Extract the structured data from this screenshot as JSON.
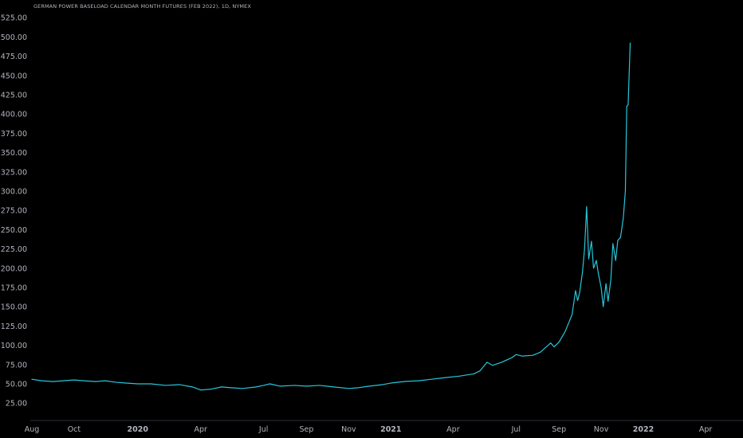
{
  "chart_data": {
    "type": "line",
    "title": "GERMAN POWER BASELOAD CALENDAR MONTH FUTURES (FEB 2022), 1D, NYMEX",
    "xlabel": "",
    "ylabel": "",
    "ylim": [
      0,
      530
    ],
    "y_ticks": [
      25,
      50,
      75,
      100,
      125,
      150,
      175,
      200,
      225,
      250,
      275,
      300,
      325,
      350,
      375,
      400,
      425,
      450,
      475,
      500,
      525
    ],
    "y_tick_labels": [
      "25.00",
      "50.00",
      "75.00",
      "100.00",
      "125.00",
      "150.00",
      "175.00",
      "200.00",
      "225.00",
      "250.00",
      "275.00",
      "300.00",
      "325.00",
      "350.00",
      "375.00",
      "400.00",
      "425.00",
      "450.00",
      "475.00",
      "500.00",
      "525.00"
    ],
    "x_range": [
      "2019-08-01",
      "2022-05-10"
    ],
    "x_ticks": [
      {
        "date": "2019-08-01",
        "label": "Aug",
        "bold": false
      },
      {
        "date": "2019-10-01",
        "label": "Oct",
        "bold": false
      },
      {
        "date": "2020-01-01",
        "label": "2020",
        "bold": true
      },
      {
        "date": "2020-04-01",
        "label": "Apr",
        "bold": false
      },
      {
        "date": "2020-07-01",
        "label": "Jul",
        "bold": false
      },
      {
        "date": "2020-09-01",
        "label": "Sep",
        "bold": false
      },
      {
        "date": "2020-11-01",
        "label": "Nov",
        "bold": false
      },
      {
        "date": "2021-01-01",
        "label": "2021",
        "bold": true
      },
      {
        "date": "2021-04-01",
        "label": "Apr",
        "bold": false
      },
      {
        "date": "2021-07-01",
        "label": "Jul",
        "bold": false
      },
      {
        "date": "2021-09-01",
        "label": "Sep",
        "bold": false
      },
      {
        "date": "2021-11-01",
        "label": "Nov",
        "bold": false
      },
      {
        "date": "2022-01-01",
        "label": "2022",
        "bold": true
      },
      {
        "date": "2022-04-01",
        "label": "Apr",
        "bold": false
      }
    ],
    "grid": false,
    "series": [
      {
        "color": "#26c6da",
        "points": [
          [
            "2019-08-01",
            56
          ],
          [
            "2019-08-15",
            54
          ],
          [
            "2019-09-01",
            53
          ],
          [
            "2019-09-15",
            54
          ],
          [
            "2019-10-01",
            55
          ],
          [
            "2019-10-15",
            54
          ],
          [
            "2019-11-01",
            53
          ],
          [
            "2019-11-15",
            54
          ],
          [
            "2019-12-01",
            52
          ],
          [
            "2019-12-15",
            51
          ],
          [
            "2020-01-01",
            50
          ],
          [
            "2020-01-20",
            50
          ],
          [
            "2020-02-10",
            48
          ],
          [
            "2020-03-01",
            49
          ],
          [
            "2020-03-20",
            46
          ],
          [
            "2020-04-01",
            42
          ],
          [
            "2020-04-15",
            43
          ],
          [
            "2020-05-01",
            46
          ],
          [
            "2020-05-15",
            45
          ],
          [
            "2020-06-01",
            44
          ],
          [
            "2020-06-20",
            46
          ],
          [
            "2020-07-01",
            48
          ],
          [
            "2020-07-10",
            50
          ],
          [
            "2020-07-25",
            47
          ],
          [
            "2020-08-15",
            48
          ],
          [
            "2020-09-01",
            47
          ],
          [
            "2020-09-20",
            48
          ],
          [
            "2020-10-10",
            46
          ],
          [
            "2020-11-01",
            44
          ],
          [
            "2020-11-15",
            45
          ],
          [
            "2020-12-01",
            47
          ],
          [
            "2020-12-20",
            49
          ],
          [
            "2021-01-01",
            51
          ],
          [
            "2021-01-20",
            53
          ],
          [
            "2021-02-10",
            54
          ],
          [
            "2021-03-01",
            56
          ],
          [
            "2021-03-20",
            58
          ],
          [
            "2021-04-10",
            60
          ],
          [
            "2021-05-01",
            63
          ],
          [
            "2021-05-10",
            67
          ],
          [
            "2021-05-20",
            78
          ],
          [
            "2021-05-28",
            74
          ],
          [
            "2021-06-10",
            78
          ],
          [
            "2021-06-25",
            84
          ],
          [
            "2021-07-01",
            88
          ],
          [
            "2021-07-10",
            86
          ],
          [
            "2021-07-25",
            87
          ],
          [
            "2021-08-05",
            91
          ],
          [
            "2021-08-20",
            103
          ],
          [
            "2021-08-25",
            98
          ],
          [
            "2021-09-01",
            104
          ],
          [
            "2021-09-10",
            118
          ],
          [
            "2021-09-20",
            140
          ],
          [
            "2021-09-25",
            171
          ],
          [
            "2021-09-28",
            158
          ],
          [
            "2021-10-01",
            169
          ],
          [
            "2021-10-05",
            195
          ],
          [
            "2021-10-08",
            225
          ],
          [
            "2021-10-11",
            280
          ],
          [
            "2021-10-14",
            212
          ],
          [
            "2021-10-18",
            235
          ],
          [
            "2021-10-21",
            200
          ],
          [
            "2021-10-25",
            210
          ],
          [
            "2021-10-28",
            193
          ],
          [
            "2021-11-01",
            175
          ],
          [
            "2021-11-04",
            150
          ],
          [
            "2021-11-08",
            180
          ],
          [
            "2021-11-11",
            157
          ],
          [
            "2021-11-15",
            185
          ],
          [
            "2021-11-18",
            232
          ],
          [
            "2021-11-22",
            210
          ],
          [
            "2021-11-25",
            236
          ],
          [
            "2021-11-29",
            240
          ],
          [
            "2021-12-03",
            265
          ],
          [
            "2021-12-06",
            300
          ],
          [
            "2021-12-08",
            410
          ],
          [
            "2021-12-10",
            412
          ],
          [
            "2021-12-13",
            492
          ]
        ]
      }
    ]
  }
}
